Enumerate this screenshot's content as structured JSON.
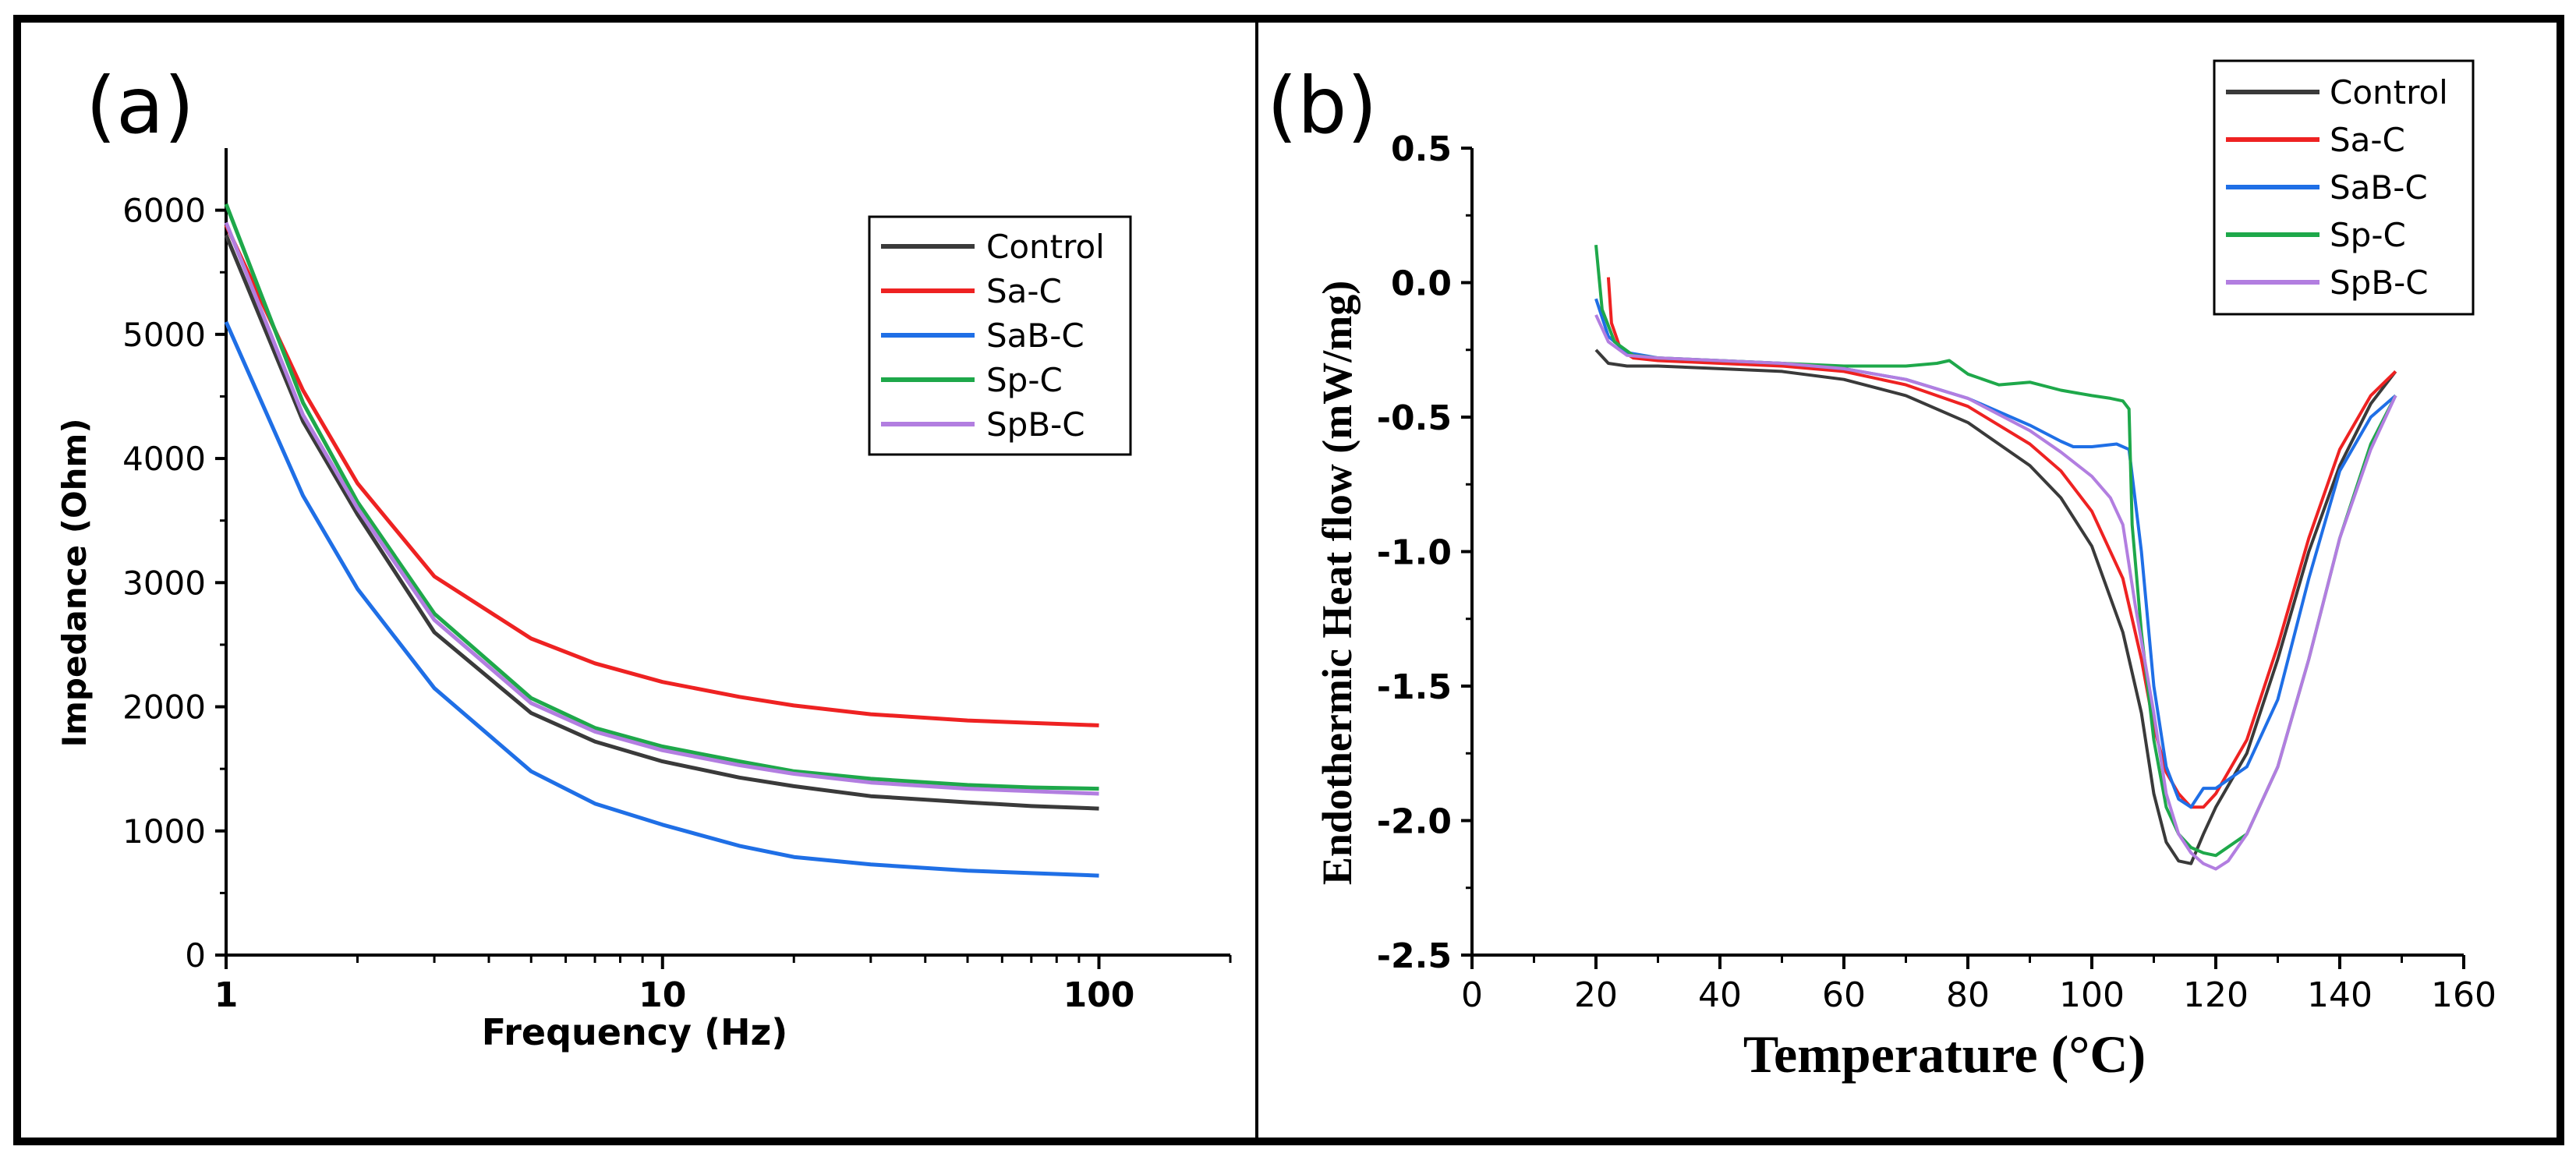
{
  "panel_labels": {
    "a": "(a)",
    "b": "(b)"
  },
  "colors": {
    "Control": "#3a3a3a",
    "Sa-C": "#ee2222",
    "SaB-C": "#1f6fe6",
    "Sp-C": "#1ea84a",
    "SpB-C": "#b27ee0"
  },
  "chart_data": [
    {
      "type": "line",
      "id": "a",
      "title": "",
      "xlabel": "Frequency (Hz)",
      "ylabel": "Impedance (Ohm)",
      "xscale": "log",
      "xlim": [
        1,
        200
      ],
      "ylim": [
        0,
        6500
      ],
      "xticks": [
        1,
        10,
        100
      ],
      "xtick_labels": [
        "1",
        "10",
        "100"
      ],
      "yticks": [
        0,
        1000,
        2000,
        3000,
        4000,
        5000,
        6000
      ],
      "ytick_labels": [
        "0",
        "1000",
        "2000",
        "3000",
        "4000",
        "5000",
        "6000"
      ],
      "legend": "top-right",
      "x": [
        1,
        1.5,
        2,
        3,
        5,
        7,
        10,
        15,
        20,
        30,
        50,
        70,
        100
      ],
      "series": [
        {
          "name": "Control",
          "values": [
            5800,
            4300,
            3550,
            2600,
            1950,
            1720,
            1560,
            1430,
            1360,
            1280,
            1230,
            1200,
            1180
          ]
        },
        {
          "name": "Sa-C",
          "values": [
            5880,
            4550,
            3800,
            3050,
            2550,
            2350,
            2200,
            2080,
            2010,
            1940,
            1890,
            1870,
            1850
          ]
        },
        {
          "name": "SaB-C",
          "values": [
            5100,
            3700,
            2950,
            2150,
            1480,
            1220,
            1050,
            880,
            790,
            730,
            680,
            660,
            640
          ]
        },
        {
          "name": "Sp-C",
          "values": [
            6050,
            4450,
            3650,
            2750,
            2070,
            1830,
            1680,
            1560,
            1480,
            1420,
            1370,
            1350,
            1340
          ]
        },
        {
          "name": "SpB-C",
          "values": [
            5900,
            4350,
            3600,
            2700,
            2030,
            1800,
            1650,
            1530,
            1460,
            1390,
            1340,
            1320,
            1300
          ]
        }
      ]
    },
    {
      "type": "line",
      "id": "b",
      "title": "",
      "xlabel": "Temperature (°C)",
      "ylabel": "Endothermic Heat flow (mW/mg)",
      "xlim": [
        0,
        160
      ],
      "ylim": [
        -2.5,
        0.5
      ],
      "xticks": [
        0,
        20,
        40,
        60,
        80,
        100,
        120,
        140,
        160
      ],
      "xtick_labels": [
        "0",
        "20",
        "40",
        "60",
        "80",
        "100",
        "120",
        "140",
        "160"
      ],
      "yticks": [
        -2.5,
        -2.0,
        -1.5,
        -1.0,
        -0.5,
        0.0,
        0.5
      ],
      "ytick_labels": [
        "-2.5",
        "-2.0",
        "-1.5",
        "-1.0",
        "-0.5",
        "0.0",
        "0.5"
      ],
      "legend": "top-right",
      "series": [
        {
          "name": "Control",
          "x": [
            20,
            22,
            25,
            30,
            40,
            50,
            60,
            70,
            80,
            90,
            95,
            100,
            105,
            108,
            110,
            112,
            114,
            116,
            118,
            120,
            125,
            130,
            135,
            140,
            145,
            149
          ],
          "y": [
            -0.25,
            -0.3,
            -0.31,
            -0.31,
            -0.32,
            -0.33,
            -0.36,
            -0.42,
            -0.52,
            -0.68,
            -0.8,
            -0.98,
            -1.3,
            -1.6,
            -1.9,
            -2.08,
            -2.15,
            -2.16,
            -2.05,
            -1.95,
            -1.75,
            -1.4,
            -1.0,
            -0.68,
            -0.45,
            -0.33
          ]
        },
        {
          "name": "Sa-C",
          "x": [
            22,
            22.5,
            24,
            26,
            30,
            40,
            50,
            60,
            70,
            80,
            90,
            95,
            100,
            105,
            108,
            110,
            112,
            114,
            116,
            118,
            120,
            125,
            130,
            135,
            140,
            145,
            149
          ],
          "y": [
            0.02,
            -0.15,
            -0.25,
            -0.28,
            -0.29,
            -0.3,
            -0.31,
            -0.33,
            -0.38,
            -0.46,
            -0.6,
            -0.7,
            -0.85,
            -1.1,
            -1.4,
            -1.65,
            -1.82,
            -1.9,
            -1.95,
            -1.95,
            -1.9,
            -1.7,
            -1.35,
            -0.95,
            -0.62,
            -0.42,
            -0.33
          ]
        },
        {
          "name": "SaB-C",
          "x": [
            20,
            22,
            25,
            30,
            40,
            50,
            60,
            70,
            80,
            90,
            95,
            97,
            100,
            104,
            106,
            108,
            110,
            112,
            114,
            116,
            118,
            120,
            125,
            130,
            135,
            140,
            145,
            149
          ],
          "y": [
            -0.06,
            -0.2,
            -0.26,
            -0.28,
            -0.29,
            -0.3,
            -0.32,
            -0.36,
            -0.43,
            -0.53,
            -0.59,
            -0.61,
            -0.61,
            -0.6,
            -0.62,
            -1.0,
            -1.5,
            -1.8,
            -1.92,
            -1.95,
            -1.88,
            -1.88,
            -1.8,
            -1.55,
            -1.1,
            -0.7,
            -0.5,
            -0.42
          ]
        },
        {
          "name": "Sp-C",
          "x": [
            20,
            21,
            23,
            26,
            30,
            40,
            50,
            60,
            70,
            75,
            77,
            80,
            85,
            90,
            95,
            100,
            103,
            105,
            106,
            106.5,
            108,
            110,
            112,
            114,
            116,
            118,
            120,
            125,
            130,
            135,
            140,
            145,
            149
          ],
          "y": [
            0.14,
            -0.1,
            -0.22,
            -0.27,
            -0.28,
            -0.29,
            -0.3,
            -0.31,
            -0.31,
            -0.3,
            -0.29,
            -0.34,
            -0.38,
            -0.37,
            -0.4,
            -0.42,
            -0.43,
            -0.44,
            -0.47,
            -0.9,
            -1.3,
            -1.7,
            -1.95,
            -2.05,
            -2.1,
            -2.12,
            -2.13,
            -2.05,
            -1.8,
            -1.4,
            -0.95,
            -0.6,
            -0.42
          ]
        },
        {
          "name": "SpB-C",
          "x": [
            20,
            22,
            25,
            30,
            40,
            50,
            60,
            70,
            80,
            90,
            95,
            100,
            103,
            105,
            107,
            110,
            112,
            114,
            116,
            118,
            120,
            122,
            125,
            130,
            135,
            140,
            145,
            149
          ],
          "y": [
            -0.12,
            -0.22,
            -0.27,
            -0.28,
            -0.29,
            -0.3,
            -0.32,
            -0.36,
            -0.43,
            -0.55,
            -0.63,
            -0.72,
            -0.8,
            -0.9,
            -1.2,
            -1.6,
            -1.9,
            -2.05,
            -2.12,
            -2.16,
            -2.18,
            -2.15,
            -2.05,
            -1.8,
            -1.4,
            -0.95,
            -0.62,
            -0.42
          ]
        }
      ]
    }
  ]
}
